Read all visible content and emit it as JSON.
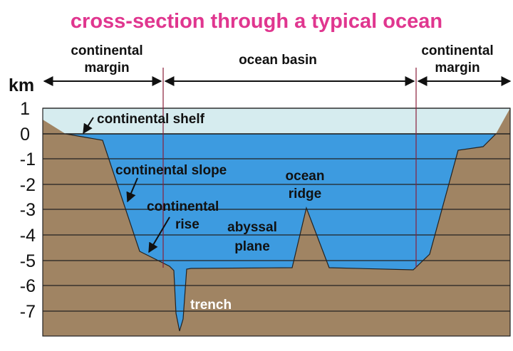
{
  "title": "cross-section through a typical ocean",
  "unit_label": "km",
  "y_ticks": [
    "1",
    "0",
    "-1",
    "-2",
    "-3",
    "-4",
    "-5",
    "-6",
    "-7"
  ],
  "regions": {
    "left_margin": [
      "continental",
      "margin"
    ],
    "basin": "ocean basin",
    "right_margin": [
      "continental",
      "margin"
    ]
  },
  "labels": {
    "shelf": "continental shelf",
    "slope": "continental slope",
    "rise": [
      "continental",
      "rise"
    ],
    "ridge": [
      "ocean",
      "ridge"
    ],
    "plain": [
      "abyssal",
      "plane"
    ],
    "trench": "trench"
  },
  "colors": {
    "title": "#e0368f",
    "ocean": "#3d9be0",
    "shelf_water": "#d6ecef",
    "land": "#a08463",
    "lines": "#222222",
    "trench_label": "#ffffff"
  }
}
